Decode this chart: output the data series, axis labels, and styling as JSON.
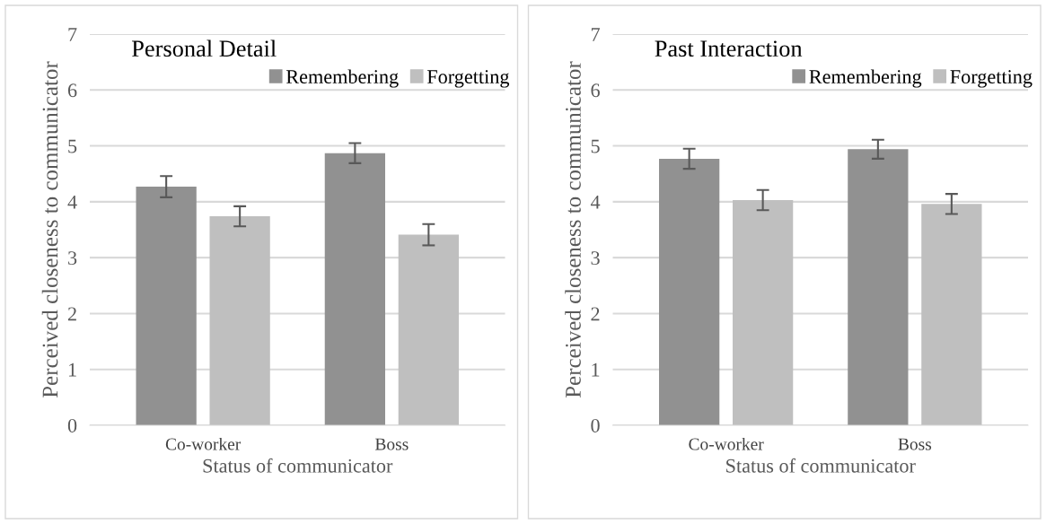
{
  "chart_data": [
    {
      "type": "bar",
      "title": "Personal Detail",
      "xlabel": "Status of communicator",
      "ylabel": "Perceived closeness to communicator",
      "categories": [
        "Co-worker",
        "Boss"
      ],
      "ylim": [
        0,
        7
      ],
      "yticks": [
        0,
        1,
        2,
        3,
        4,
        5,
        6,
        7
      ],
      "grid": "y",
      "legend": "top right",
      "series": [
        {
          "name": "Remembering",
          "color": "#919191",
          "values": [
            4.27,
            4.87
          ],
          "errors": [
            0.19,
            0.18
          ]
        },
        {
          "name": "Forgetting",
          "color": "#bfbfbf",
          "values": [
            3.74,
            3.41
          ],
          "errors": [
            0.18,
            0.19
          ]
        }
      ]
    },
    {
      "type": "bar",
      "title": "Past Interaction",
      "xlabel": "Status of communicator",
      "ylabel": "Perceived closeness to communicator",
      "categories": [
        "Co-worker",
        "Boss"
      ],
      "ylim": [
        0,
        7
      ],
      "yticks": [
        0,
        1,
        2,
        3,
        4,
        5,
        6,
        7
      ],
      "grid": "y",
      "legend": "top right",
      "series": [
        {
          "name": "Remembering",
          "color": "#919191",
          "values": [
            4.77,
            4.94
          ],
          "errors": [
            0.18,
            0.17
          ]
        },
        {
          "name": "Forgetting",
          "color": "#bfbfbf",
          "values": [
            4.03,
            3.96
          ],
          "errors": [
            0.18,
            0.18
          ]
        }
      ]
    }
  ]
}
